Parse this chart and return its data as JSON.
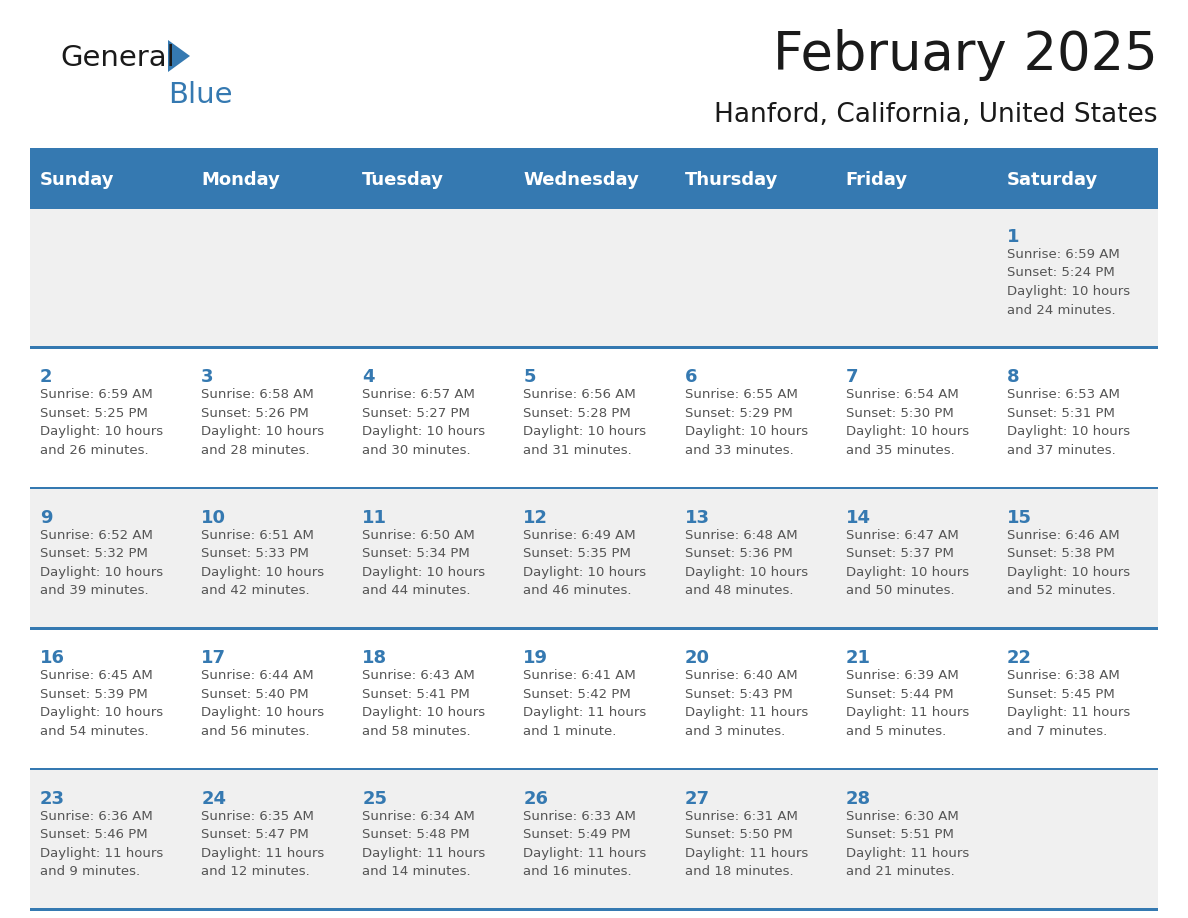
{
  "title": "February 2025",
  "subtitle": "Hanford, California, United States",
  "header_bg": "#3579B1",
  "header_text_color": "#FFFFFF",
  "cell_border_color": "#3579B1",
  "day_number_color": "#3579B1",
  "info_text_color": "#555555",
  "background_color": "#FFFFFF",
  "alt_row_color": "#F0F0F0",
  "days_of_week": [
    "Sunday",
    "Monday",
    "Tuesday",
    "Wednesday",
    "Thursday",
    "Friday",
    "Saturday"
  ],
  "weeks": [
    [
      {
        "day": null,
        "info": null
      },
      {
        "day": null,
        "info": null
      },
      {
        "day": null,
        "info": null
      },
      {
        "day": null,
        "info": null
      },
      {
        "day": null,
        "info": null
      },
      {
        "day": null,
        "info": null
      },
      {
        "day": 1,
        "info": "Sunrise: 6:59 AM\nSunset: 5:24 PM\nDaylight: 10 hours\nand 24 minutes."
      }
    ],
    [
      {
        "day": 2,
        "info": "Sunrise: 6:59 AM\nSunset: 5:25 PM\nDaylight: 10 hours\nand 26 minutes."
      },
      {
        "day": 3,
        "info": "Sunrise: 6:58 AM\nSunset: 5:26 PM\nDaylight: 10 hours\nand 28 minutes."
      },
      {
        "day": 4,
        "info": "Sunrise: 6:57 AM\nSunset: 5:27 PM\nDaylight: 10 hours\nand 30 minutes."
      },
      {
        "day": 5,
        "info": "Sunrise: 6:56 AM\nSunset: 5:28 PM\nDaylight: 10 hours\nand 31 minutes."
      },
      {
        "day": 6,
        "info": "Sunrise: 6:55 AM\nSunset: 5:29 PM\nDaylight: 10 hours\nand 33 minutes."
      },
      {
        "day": 7,
        "info": "Sunrise: 6:54 AM\nSunset: 5:30 PM\nDaylight: 10 hours\nand 35 minutes."
      },
      {
        "day": 8,
        "info": "Sunrise: 6:53 AM\nSunset: 5:31 PM\nDaylight: 10 hours\nand 37 minutes."
      }
    ],
    [
      {
        "day": 9,
        "info": "Sunrise: 6:52 AM\nSunset: 5:32 PM\nDaylight: 10 hours\nand 39 minutes."
      },
      {
        "day": 10,
        "info": "Sunrise: 6:51 AM\nSunset: 5:33 PM\nDaylight: 10 hours\nand 42 minutes."
      },
      {
        "day": 11,
        "info": "Sunrise: 6:50 AM\nSunset: 5:34 PM\nDaylight: 10 hours\nand 44 minutes."
      },
      {
        "day": 12,
        "info": "Sunrise: 6:49 AM\nSunset: 5:35 PM\nDaylight: 10 hours\nand 46 minutes."
      },
      {
        "day": 13,
        "info": "Sunrise: 6:48 AM\nSunset: 5:36 PM\nDaylight: 10 hours\nand 48 minutes."
      },
      {
        "day": 14,
        "info": "Sunrise: 6:47 AM\nSunset: 5:37 PM\nDaylight: 10 hours\nand 50 minutes."
      },
      {
        "day": 15,
        "info": "Sunrise: 6:46 AM\nSunset: 5:38 PM\nDaylight: 10 hours\nand 52 minutes."
      }
    ],
    [
      {
        "day": 16,
        "info": "Sunrise: 6:45 AM\nSunset: 5:39 PM\nDaylight: 10 hours\nand 54 minutes."
      },
      {
        "day": 17,
        "info": "Sunrise: 6:44 AM\nSunset: 5:40 PM\nDaylight: 10 hours\nand 56 minutes."
      },
      {
        "day": 18,
        "info": "Sunrise: 6:43 AM\nSunset: 5:41 PM\nDaylight: 10 hours\nand 58 minutes."
      },
      {
        "day": 19,
        "info": "Sunrise: 6:41 AM\nSunset: 5:42 PM\nDaylight: 11 hours\nand 1 minute."
      },
      {
        "day": 20,
        "info": "Sunrise: 6:40 AM\nSunset: 5:43 PM\nDaylight: 11 hours\nand 3 minutes."
      },
      {
        "day": 21,
        "info": "Sunrise: 6:39 AM\nSunset: 5:44 PM\nDaylight: 11 hours\nand 5 minutes."
      },
      {
        "day": 22,
        "info": "Sunrise: 6:38 AM\nSunset: 5:45 PM\nDaylight: 11 hours\nand 7 minutes."
      }
    ],
    [
      {
        "day": 23,
        "info": "Sunrise: 6:36 AM\nSunset: 5:46 PM\nDaylight: 11 hours\nand 9 minutes."
      },
      {
        "day": 24,
        "info": "Sunrise: 6:35 AM\nSunset: 5:47 PM\nDaylight: 11 hours\nand 12 minutes."
      },
      {
        "day": 25,
        "info": "Sunrise: 6:34 AM\nSunset: 5:48 PM\nDaylight: 11 hours\nand 14 minutes."
      },
      {
        "day": 26,
        "info": "Sunrise: 6:33 AM\nSunset: 5:49 PM\nDaylight: 11 hours\nand 16 minutes."
      },
      {
        "day": 27,
        "info": "Sunrise: 6:31 AM\nSunset: 5:50 PM\nDaylight: 11 hours\nand 18 minutes."
      },
      {
        "day": 28,
        "info": "Sunrise: 6:30 AM\nSunset: 5:51 PM\nDaylight: 11 hours\nand 21 minutes."
      },
      {
        "day": null,
        "info": null
      }
    ]
  ],
  "logo_general_color": "#1a1a1a",
  "logo_blue_color": "#3579B1",
  "title_fontsize": 38,
  "subtitle_fontsize": 19,
  "header_fontsize": 13,
  "day_num_fontsize": 13,
  "info_fontsize": 9.5
}
